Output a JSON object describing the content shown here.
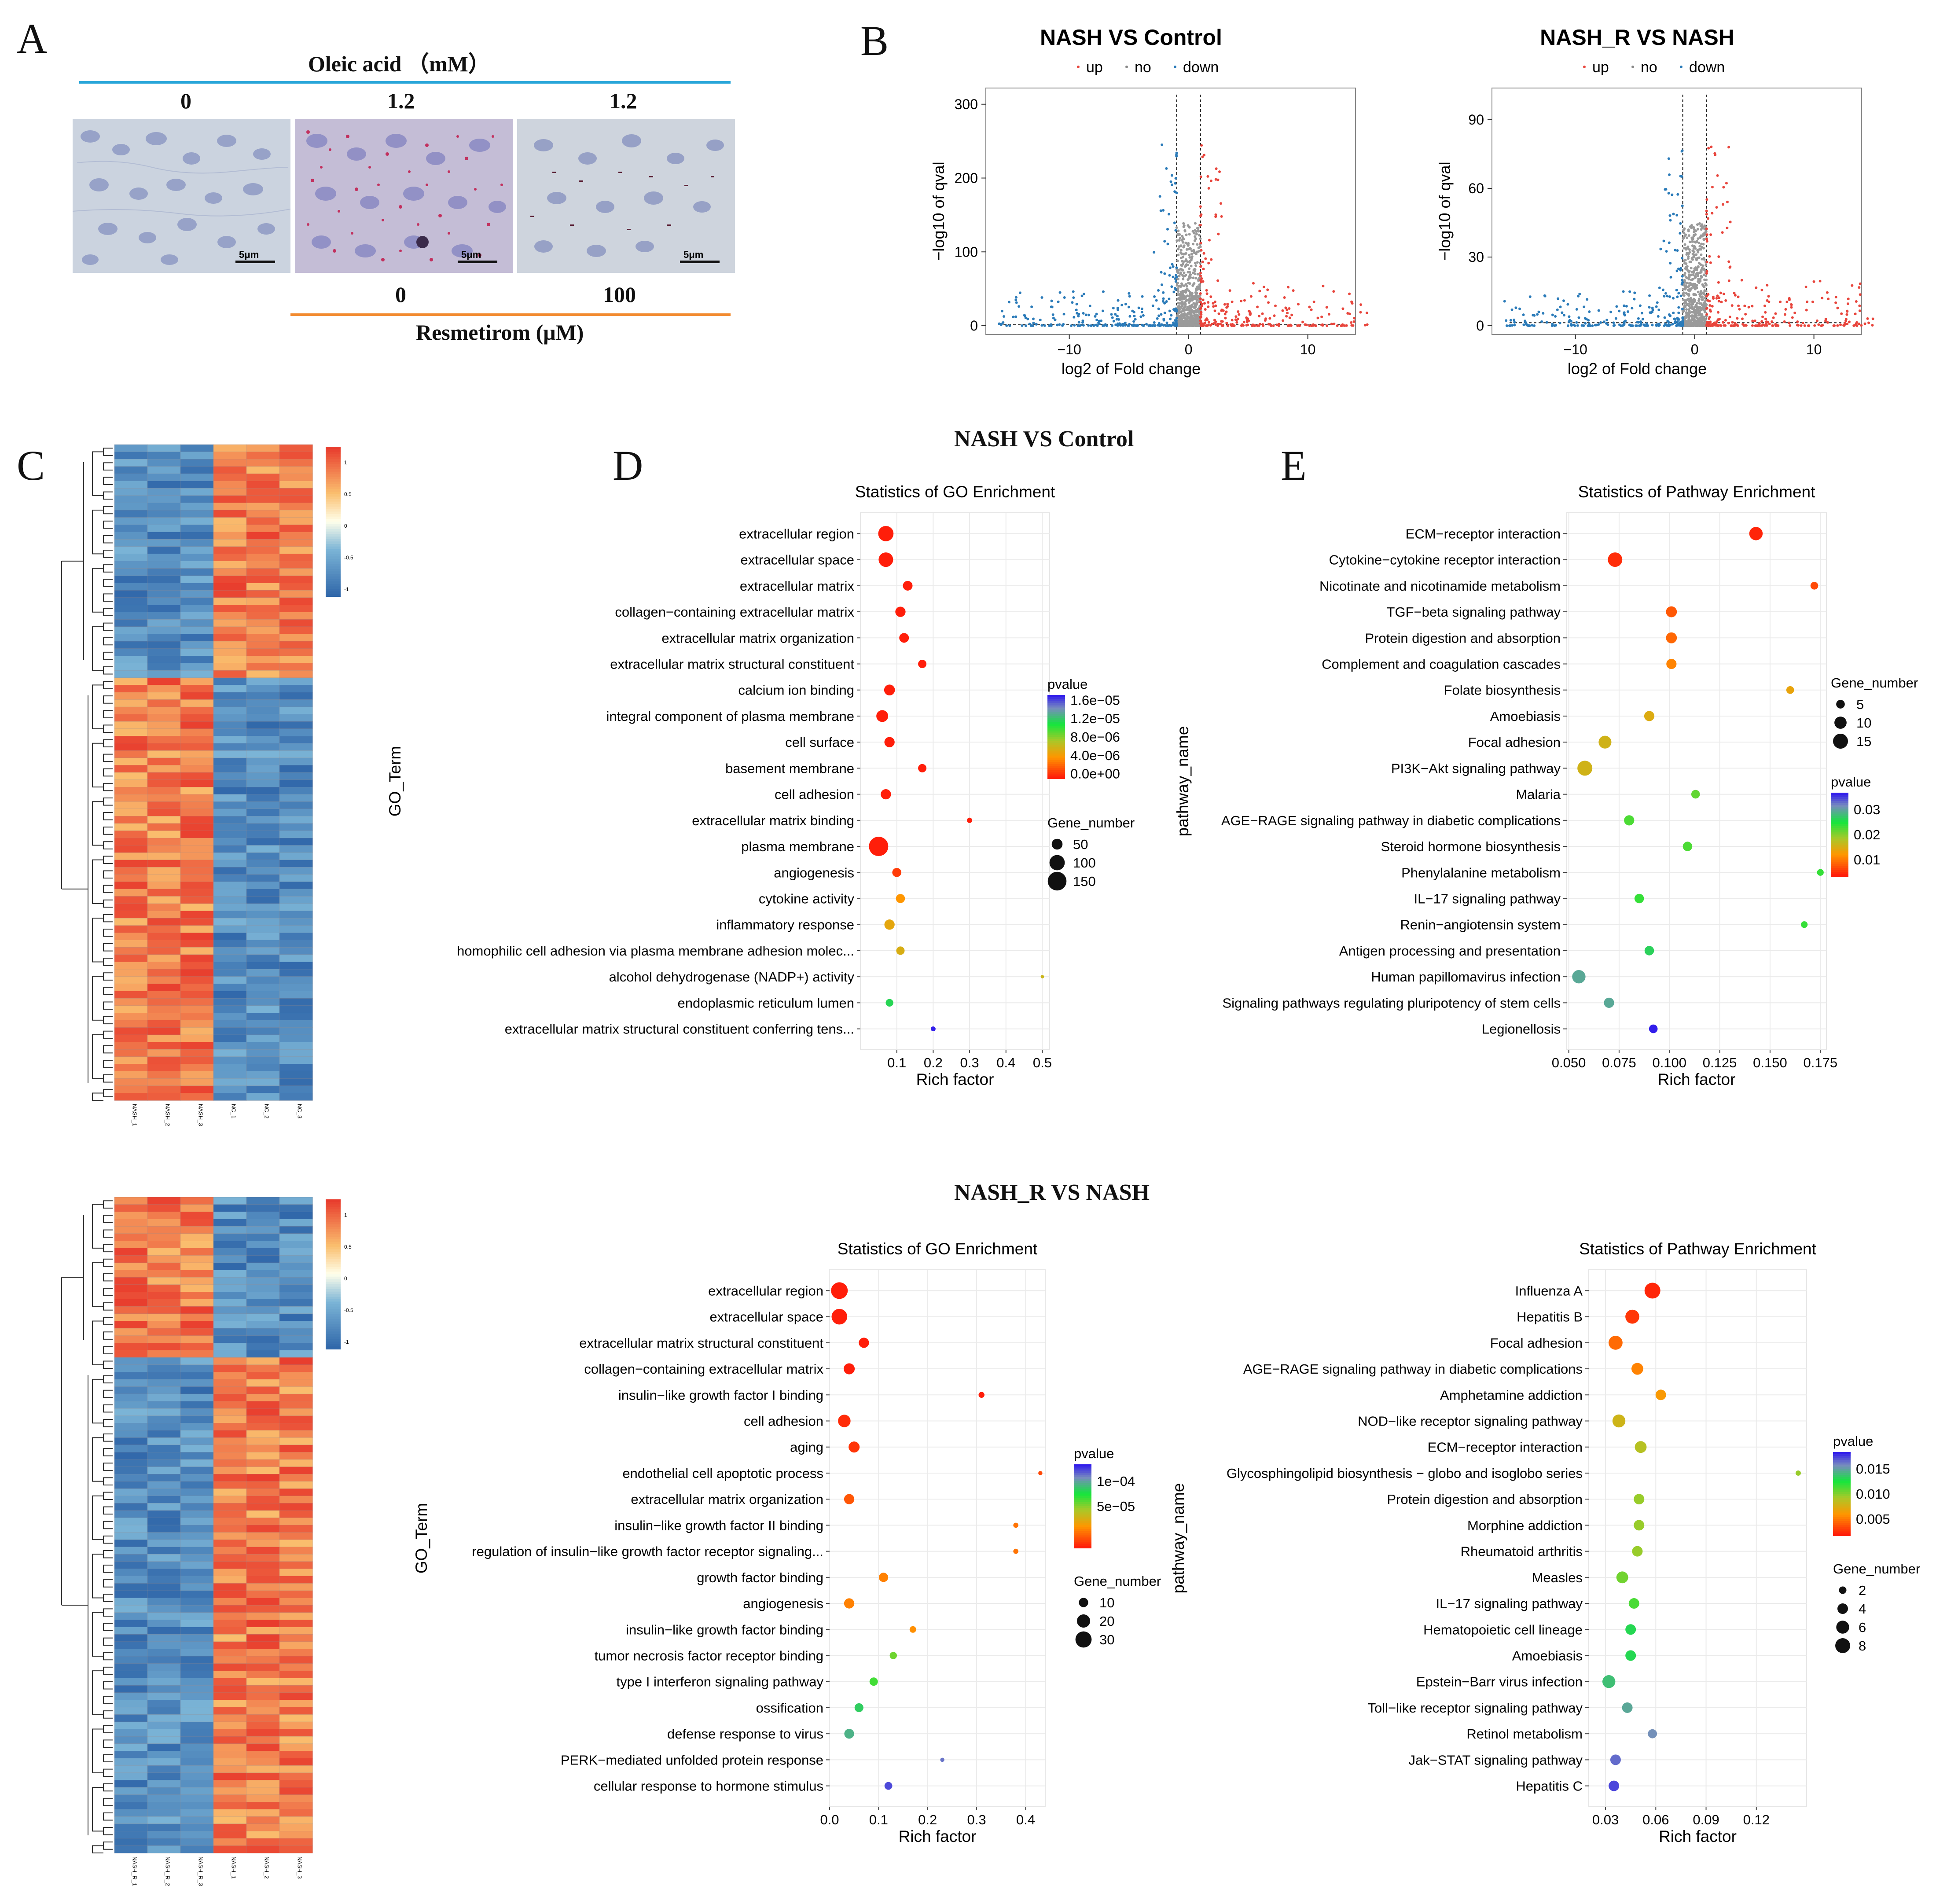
{
  "panel_letters": [
    "A",
    "B",
    "C",
    "D",
    "E"
  ],
  "panelA": {
    "top_title": "Oleic acid （mM）",
    "top_doses": [
      "0",
      "1.2",
      "1.2"
    ],
    "bottom_doses": [
      "0",
      "100"
    ],
    "bottom_title": "Resmetirom (μM)",
    "scale_bar": "5μm",
    "colors": {
      "top_line": "#29a6d9",
      "bottom_line": "#f28b30"
    }
  },
  "panelB": [
    {
      "title": "NASH VS Control",
      "legend": [
        "up",
        "no",
        "down"
      ],
      "xlabel": "log2 of Fold change",
      "ylabel": "−log10 of qval",
      "xticks": [
        "−10",
        "0",
        "10"
      ],
      "yticks": [
        "0",
        "100",
        "200",
        "300"
      ]
    },
    {
      "title": "NASH_R VS NASH",
      "legend": [
        "up",
        "no",
        "down"
      ],
      "xlabel": "log2 of Fold change",
      "ylabel": "−log10 of qval",
      "xticks": [
        "−10",
        "0",
        "10"
      ],
      "yticks": [
        "0",
        "30",
        "60",
        "90"
      ]
    }
  ],
  "section_titles": [
    "NASH VS Control",
    "NASH_R VS NASH"
  ],
  "heatmap_top": {
    "col_labels": [
      "NASH_1",
      "NASH_2",
      "NASH_3",
      "NC_1",
      "NC_2",
      "NC_3"
    ],
    "scale_ticks": [
      "1",
      "0.5",
      "0",
      "-0.5",
      "-1"
    ]
  },
  "heatmap_bottom": {
    "col_labels": [
      "NASH_R_1",
      "NASH_R_2",
      "NASH_R_3",
      "NASH_1",
      "NASH_2",
      "NASH_3"
    ],
    "scale_ticks": [
      "1",
      "0.5",
      "0",
      "-0.5",
      "-1"
    ]
  },
  "chart_data": [
    {
      "id": "go_top",
      "type": "scatter",
      "title": "Statistics of GO Enrichment",
      "xlabel": "Rich factor",
      "ylabel": "GO_Term",
      "xlim": [
        0.0,
        0.52
      ],
      "xticks": [
        0.1,
        0.2,
        0.3,
        0.4,
        0.5
      ],
      "xtick_labels": [
        "0.1",
        "0.2",
        "0.3",
        "0.4",
        "0.5"
      ],
      "color_legend": {
        "title": "pvalue",
        "labels": [
          "1.6e−05",
          "1.2e−05",
          "8.0e−06",
          "4.0e−06",
          "0.0e+00"
        ]
      },
      "size_legend": {
        "title": "Gene_number",
        "labels": [
          "50",
          "100",
          "150"
        ]
      },
      "terms": [
        "extracellular region",
        "extracellular space",
        "extracellular matrix",
        "collagen−containing extracellular matrix",
        "extracellular matrix organization",
        "extracellular matrix structural constituent",
        "calcium ion binding",
        "integral component of plasma membrane",
        "cell surface",
        "basement membrane",
        "cell adhesion",
        "extracellular matrix binding",
        "plasma membrane",
        "angiogenesis",
        "cytokine activity",
        "inflammatory response",
        "homophilic cell adhesion via plasma membrane adhesion molec...",
        "alcohol dehydrogenase (NADP+) activity",
        "endoplasmic reticulum lumen",
        "extracellular matrix structural constituent conferring tens..."
      ],
      "rich_factor": [
        0.07,
        0.07,
        0.13,
        0.11,
        0.12,
        0.17,
        0.08,
        0.06,
        0.08,
        0.17,
        0.07,
        0.3,
        0.05,
        0.1,
        0.11,
        0.08,
        0.11,
        0.5,
        0.08,
        0.2
      ],
      "gene_number": [
        100,
        90,
        40,
        45,
        40,
        30,
        50,
        60,
        45,
        30,
        45,
        12,
        160,
        35,
        35,
        45,
        30,
        5,
        25,
        10
      ],
      "pvalue": [
        0.0,
        0.0,
        0.0,
        0.0,
        0.0,
        0.0,
        0.0,
        0.0,
        0.0,
        0.0,
        0.0,
        0.0,
        0.0,
        1e-06,
        4e-06,
        5e-06,
        5.5e-06,
        6e-06,
        1.1e-05,
        1.6e-05
      ]
    },
    {
      "id": "kegg_top",
      "type": "scatter",
      "title": "Statistics of Pathway Enrichment",
      "xlabel": "Rich factor",
      "ylabel": "pathway_name",
      "xlim": [
        0.049,
        0.178
      ],
      "xticks": [
        0.05,
        0.075,
        0.1,
        0.125,
        0.15,
        0.175
      ],
      "xtick_labels": [
        "0.050",
        "0.075",
        "0.100",
        "0.125",
        "0.150",
        "0.175"
      ],
      "color_legend": {
        "title": "pvalue",
        "labels": [
          "0.03",
          "0.02",
          "0.01"
        ]
      },
      "size_legend": {
        "title": "Gene_number",
        "labels": [
          "5",
          "10",
          "15"
        ]
      },
      "terms": [
        "ECM−receptor interaction",
        "Cytokine−cytokine receptor interaction",
        "Nicotinate and nicotinamide metabolism",
        "TGF−beta signaling pathway",
        "Protein digestion and absorption",
        "Complement and coagulation cascades",
        "Folate biosynthesis",
        "Amoebiasis",
        "Focal adhesion",
        "PI3K−Akt signaling pathway",
        "Malaria",
        "AGE−RAGE signaling pathway in diabetic complications",
        "Steroid hormone biosynthesis",
        "Phenylalanine metabolism",
        "IL−17 signaling pathway",
        "Renin−angiotensin system",
        "Antigen processing and presentation",
        "Human papillomavirus infection",
        "Signaling pathways regulating pluripotency of stem cells",
        "Legionellosis"
      ],
      "rich_factor": [
        0.143,
        0.073,
        0.172,
        0.101,
        0.101,
        0.101,
        0.16,
        0.09,
        0.068,
        0.058,
        0.113,
        0.08,
        0.109,
        0.175,
        0.085,
        0.167,
        0.09,
        0.055,
        0.07,
        0.092
      ],
      "gene_number": [
        12,
        14,
        4,
        8,
        8,
        7,
        4,
        7,
        11,
        15,
        5,
        7,
        6,
        3,
        6,
        3,
        6,
        12,
        7,
        5
      ],
      "pvalue": [
        0.0005,
        0.001,
        0.003,
        0.004,
        0.005,
        0.007,
        0.01,
        0.011,
        0.012,
        0.012,
        0.018,
        0.019,
        0.019,
        0.02,
        0.02,
        0.02,
        0.023,
        0.026,
        0.026,
        0.033
      ]
    },
    {
      "id": "go_bottom",
      "type": "scatter",
      "title": "Statistics of GO Enrichment",
      "xlabel": "Rich factor",
      "ylabel": "GO_Term",
      "xlim": [
        0.0,
        0.44
      ],
      "xticks": [
        0.0,
        0.1,
        0.2,
        0.3,
        0.4
      ],
      "xtick_labels": [
        "0.0",
        "0.1",
        "0.2",
        "0.3",
        "0.4"
      ],
      "color_legend": {
        "title": "pvalue",
        "labels": [
          "1e−04",
          "5e−05"
        ]
      },
      "size_legend": {
        "title": "Gene_number",
        "labels": [
          "10",
          "20",
          "30"
        ]
      },
      "terms": [
        "extracellular region",
        "extracellular space",
        "extracellular matrix structural constituent",
        "collagen−containing extracellular matrix",
        "insulin−like growth factor I binding",
        "cell adhesion",
        "aging",
        "endothelial cell apoptotic process",
        "extracellular matrix organization",
        "insulin−like growth factor II binding",
        "regulation of insulin−like growth factor receptor signaling...",
        "growth factor binding",
        "angiogenesis",
        "insulin−like growth factor binding",
        "tumor necrosis factor receptor binding",
        "type I interferon signaling pathway",
        "ossification",
        "defense response to virus",
        "PERK−mediated unfolded protein response",
        "cellular response to hormone stimulus"
      ],
      "rich_factor": [
        0.02,
        0.02,
        0.07,
        0.04,
        0.31,
        0.03,
        0.05,
        0.43,
        0.04,
        0.38,
        0.38,
        0.11,
        0.04,
        0.17,
        0.13,
        0.09,
        0.06,
        0.04,
        0.23,
        0.12
      ],
      "gene_number": [
        32,
        28,
        12,
        14,
        4,
        18,
        14,
        2,
        12,
        3,
        3,
        10,
        12,
        5,
        6,
        8,
        9,
        11,
        2,
        7
      ],
      "pvalue": [
        0.0,
        0.0,
        0.0,
        0.0,
        0.0,
        5e-06,
        8e-06,
        1.5e-05,
        2e-05,
        3e-05,
        3e-05,
        3.5e-05,
        3.5e-05,
        4e-05,
        9e-05,
        0.0001,
        0.00012,
        0.00013,
        0.00015,
        0.00016
      ]
    },
    {
      "id": "kegg_bottom",
      "type": "scatter",
      "title": "Statistics of Pathway Enrichment",
      "xlabel": "Rich factor",
      "ylabel": "pathway_name",
      "xlim": [
        0.02,
        0.15
      ],
      "xticks": [
        0.03,
        0.06,
        0.09,
        0.12
      ],
      "xtick_labels": [
        "0.03",
        "0.06",
        "0.09",
        "0.12"
      ],
      "color_legend": {
        "title": "pvalue",
        "labels": [
          "0.015",
          "0.010",
          "0.005"
        ]
      },
      "size_legend": {
        "title": "Gene_number",
        "labels": [
          "2",
          "4",
          "6",
          "8"
        ]
      },
      "terms": [
        "Influenza A",
        "Hepatitis B",
        "Focal adhesion",
        "AGE−RAGE signaling pathway in diabetic complications",
        "Amphetamine addiction",
        "NOD−like receptor signaling pathway",
        "ECM−receptor interaction",
        "Glycosphingolipid biosynthesis − globo and isoglobo series",
        "Protein digestion and absorption",
        "Morphine addiction",
        "Rheumatoid arthritis",
        "Measles",
        "IL−17 signaling pathway",
        "Hematopoietic cell lineage",
        "Amoebiasis",
        "Epstein−Barr virus infection",
        "Toll−like receptor signaling pathway",
        "Retinol metabolism",
        "Jak−STAT signaling pathway",
        "Hepatitis C"
      ],
      "rich_factor": [
        0.058,
        0.046,
        0.036,
        0.049,
        0.063,
        0.038,
        0.051,
        0.145,
        0.05,
        0.05,
        0.049,
        0.04,
        0.047,
        0.045,
        0.045,
        0.032,
        0.043,
        0.058,
        0.036,
        0.035
      ],
      "gene_number": [
        9,
        7,
        7,
        5,
        4,
        6,
        5,
        1,
        4,
        4,
        4,
        5,
        4,
        4,
        4,
        6,
        4,
        3,
        4,
        4
      ],
      "pvalue": [
        0.0003,
        0.001,
        0.003,
        0.004,
        0.005,
        0.007,
        0.008,
        0.009,
        0.009,
        0.009,
        0.009,
        0.01,
        0.011,
        0.013,
        0.013,
        0.014,
        0.015,
        0.016,
        0.017,
        0.018
      ]
    }
  ]
}
